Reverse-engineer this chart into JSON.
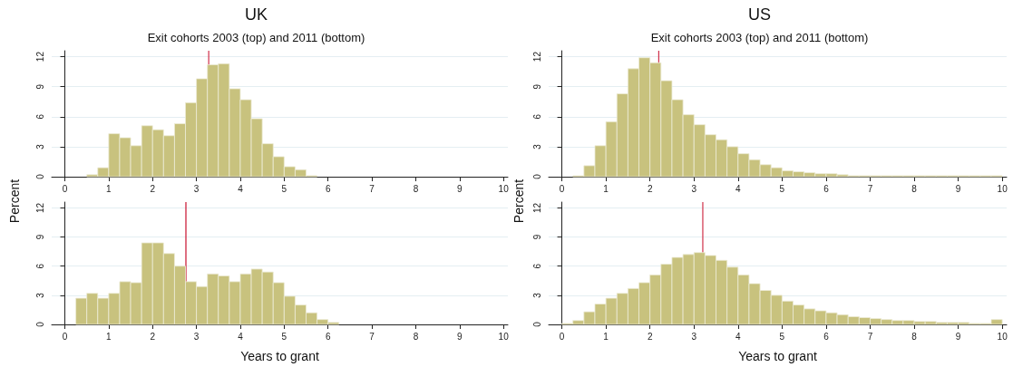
{
  "chart_data": [
    {
      "type": "histogram",
      "title": "UK",
      "subtitle": "Exit cohorts 2003 (top) and 2011 (bottom)",
      "ylabel": "Percent",
      "color": "#c8c27e",
      "bins": [
        0.5,
        0.75,
        1,
        1.25,
        1.5,
        1.75,
        2,
        2.25,
        2.5,
        2.75,
        3,
        3.25,
        3.5,
        3.75,
        4,
        4.25,
        4.5,
        4.75,
        5,
        5.25,
        5.5,
        5.75
      ],
      "values": [
        0.2,
        0.9,
        4.3,
        3.9,
        3.1,
        5.1,
        4.7,
        4.1,
        5.3,
        7.4,
        9.8,
        11.2,
        11.3,
        8.8,
        7.7,
        5.8,
        3.3,
        2.0,
        1.0,
        0.7,
        0.1
      ],
      "xlim": [
        -0.3,
        10.1
      ],
      "xticks": [
        0,
        1,
        2,
        3,
        4,
        5,
        6,
        7,
        8,
        9,
        10
      ],
      "ylim": [
        0,
        12.6
      ],
      "yticks": [
        0,
        3,
        6,
        9,
        12
      ],
      "grid": "y",
      "ref_lines": [
        {
          "axis": "x",
          "value": 3.28,
          "color": "#d0304a"
        }
      ]
    },
    {
      "type": "histogram",
      "xlabel": "Years to grant",
      "color": "#c8c27e",
      "bins": [
        0.25,
        0.5,
        0.75,
        1,
        1.25,
        1.5,
        1.75,
        2,
        2.25,
        2.5,
        2.75,
        3,
        3.25,
        3.5,
        3.75,
        4,
        4.25,
        4.5,
        4.75,
        5,
        5.25,
        5.5,
        5.75,
        6,
        6.25
      ],
      "values": [
        2.7,
        3.2,
        2.7,
        3.2,
        4.4,
        4.3,
        8.4,
        8.4,
        7.3,
        6.0,
        4.4,
        3.9,
        5.2,
        5.0,
        4.4,
        5.2,
        5.7,
        5.4,
        4.3,
        2.9,
        2.0,
        1.2,
        0.5,
        0.2
      ],
      "xlim": [
        -0.3,
        10.1
      ],
      "xticks": [
        0,
        1,
        2,
        3,
        4,
        5,
        6,
        7,
        8,
        9,
        10
      ],
      "ylim": [
        0,
        12.6
      ],
      "yticks": [
        0,
        3,
        6,
        9,
        12
      ],
      "grid": "y",
      "ref_lines": [
        {
          "axis": "x",
          "value": 2.76,
          "color": "#c8102e"
        }
      ]
    },
    {
      "type": "histogram",
      "title": "US",
      "subtitle": "Exit cohorts 2003 (top) and 2011 (bottom)",
      "ylabel": "Percent",
      "color": "#c8c27e",
      "bins": [
        0.25,
        0.5,
        0.75,
        1,
        1.25,
        1.5,
        1.75,
        2,
        2.25,
        2.5,
        2.75,
        3,
        3.25,
        3.5,
        3.75,
        4,
        4.25,
        4.5,
        4.75,
        5,
        5.25,
        5.5,
        5.75,
        6,
        6.25,
        6.5,
        6.75,
        7,
        7.25,
        7.5,
        7.75,
        8,
        8.25,
        8.5,
        8.75,
        9,
        9.25,
        9.5,
        9.75,
        10
      ],
      "values": [
        0.1,
        1.1,
        3.1,
        5.5,
        8.3,
        10.8,
        11.9,
        11.4,
        9.6,
        7.7,
        6.2,
        5.2,
        4.2,
        3.7,
        3.0,
        2.3,
        1.7,
        1.2,
        0.9,
        0.6,
        0.5,
        0.4,
        0.3,
        0.3,
        0.2,
        0.1,
        0.1,
        0.1,
        0.1,
        0.1,
        0.1,
        0.1,
        0.1,
        0.1,
        0.1,
        0.1,
        0.1,
        0.1,
        0.1
      ],
      "xlim": [
        -0.3,
        10.1
      ],
      "xticks": [
        0,
        1,
        2,
        3,
        4,
        5,
        6,
        7,
        8,
        9,
        10
      ],
      "ylim": [
        0,
        12.6
      ],
      "yticks": [
        0,
        3,
        6,
        9,
        12
      ],
      "grid": "y",
      "ref_lines": [
        {
          "axis": "x",
          "value": 2.2,
          "color": "#d0304a"
        }
      ]
    },
    {
      "type": "histogram",
      "xlabel": "Years to grant",
      "color": "#c8c27e",
      "bins": [
        0,
        0.25,
        0.5,
        0.75,
        1,
        1.25,
        1.5,
        1.75,
        2,
        2.25,
        2.5,
        2.75,
        3,
        3.25,
        3.5,
        3.75,
        4,
        4.25,
        4.5,
        4.75,
        5,
        5.25,
        5.5,
        5.75,
        6,
        6.25,
        6.5,
        6.75,
        7,
        7.25,
        7.5,
        7.75,
        8,
        8.25,
        8.5,
        8.75,
        9,
        9.25,
        9.5,
        9.75,
        10
      ],
      "values": [
        0.1,
        0.4,
        1.3,
        2.1,
        2.7,
        3.2,
        3.7,
        4.3,
        5.1,
        6.2,
        6.9,
        7.2,
        7.4,
        7.1,
        6.6,
        5.9,
        5.1,
        4.2,
        3.5,
        3.0,
        2.4,
        2.0,
        1.6,
        1.4,
        1.2,
        1.0,
        0.8,
        0.7,
        0.6,
        0.5,
        0.4,
        0.4,
        0.3,
        0.3,
        0.2,
        0.2,
        0.2,
        0.1,
        0.1,
        0.5
      ],
      "xlim": [
        -0.3,
        10.1
      ],
      "xticks": [
        0,
        1,
        2,
        3,
        4,
        5,
        6,
        7,
        8,
        9,
        10
      ],
      "ylim": [
        0,
        12.6
      ],
      "yticks": [
        0,
        3,
        6,
        9,
        12
      ],
      "grid": "y",
      "ref_lines": [
        {
          "axis": "x",
          "value": 3.2,
          "color": "#d0304a"
        }
      ]
    }
  ]
}
